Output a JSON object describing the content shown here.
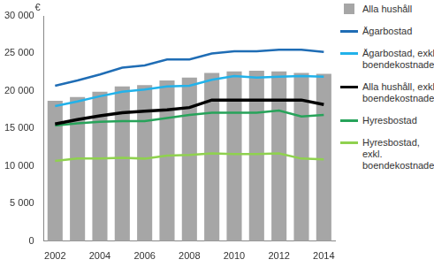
{
  "chart_data": {
    "type": "bar",
    "ylabel": "€",
    "categories": [
      "2002",
      null,
      "2004",
      null,
      "2006",
      null,
      "2008",
      null,
      "2010",
      null,
      "2012",
      null,
      "2014"
    ],
    "series": [
      {
        "name": "Alla hushåll",
        "type": "bar",
        "color": "#a6a6a6",
        "values": [
          18700,
          19200,
          19900,
          20600,
          20800,
          21400,
          21800,
          22400,
          22600,
          22700,
          22600,
          22400,
          22300
        ]
      },
      {
        "name": "Ägarbostad",
        "type": "line",
        "color": "#1f6db5",
        "values": [
          20700,
          21400,
          22200,
          23100,
          23400,
          24200,
          24200,
          25000,
          25300,
          25300,
          25500,
          25500,
          25200
        ]
      },
      {
        "name": "Ägarbostad, exkl. boendekostnader",
        "type": "line",
        "color": "#22b2ea",
        "values": [
          18000,
          18600,
          19300,
          19900,
          20200,
          20600,
          20700,
          21500,
          22000,
          21800,
          21900,
          22000,
          21900
        ]
      },
      {
        "name": "Alla hushåll, exkl. boendekostnader",
        "type": "line",
        "color": "#000000",
        "values": [
          15600,
          16200,
          16700,
          17100,
          17300,
          17500,
          17800,
          18800,
          18800,
          18800,
          18800,
          18800,
          18200
        ]
      },
      {
        "name": "Hyresbostad",
        "type": "line",
        "color": "#27a35a",
        "values": [
          15400,
          15700,
          15900,
          16000,
          16000,
          16400,
          16800,
          17100,
          17100,
          17100,
          17400,
          16600,
          16800
        ]
      },
      {
        "name": "Hyresbostad, exkl. boendekostnader",
        "type": "line",
        "color": "#8fd14f",
        "values": [
          10700,
          11000,
          11000,
          11100,
          11000,
          11400,
          11500,
          11700,
          11600,
          11600,
          11700,
          11000,
          10900
        ]
      }
    ],
    "ylim": [
      0,
      30000
    ],
    "yticks": [
      0,
      {
        "value": 5000,
        "label": "5 000"
      },
      {
        "value": 10000,
        "label": "10 000"
      },
      {
        "value": 15000,
        "label": "15 000"
      },
      {
        "value": 20000,
        "label": "20 000"
      },
      {
        "value": 25000,
        "label": "25 000"
      },
      {
        "value": 30000,
        "label": "30 000"
      }
    ],
    "grid": false,
    "legend": "right"
  }
}
